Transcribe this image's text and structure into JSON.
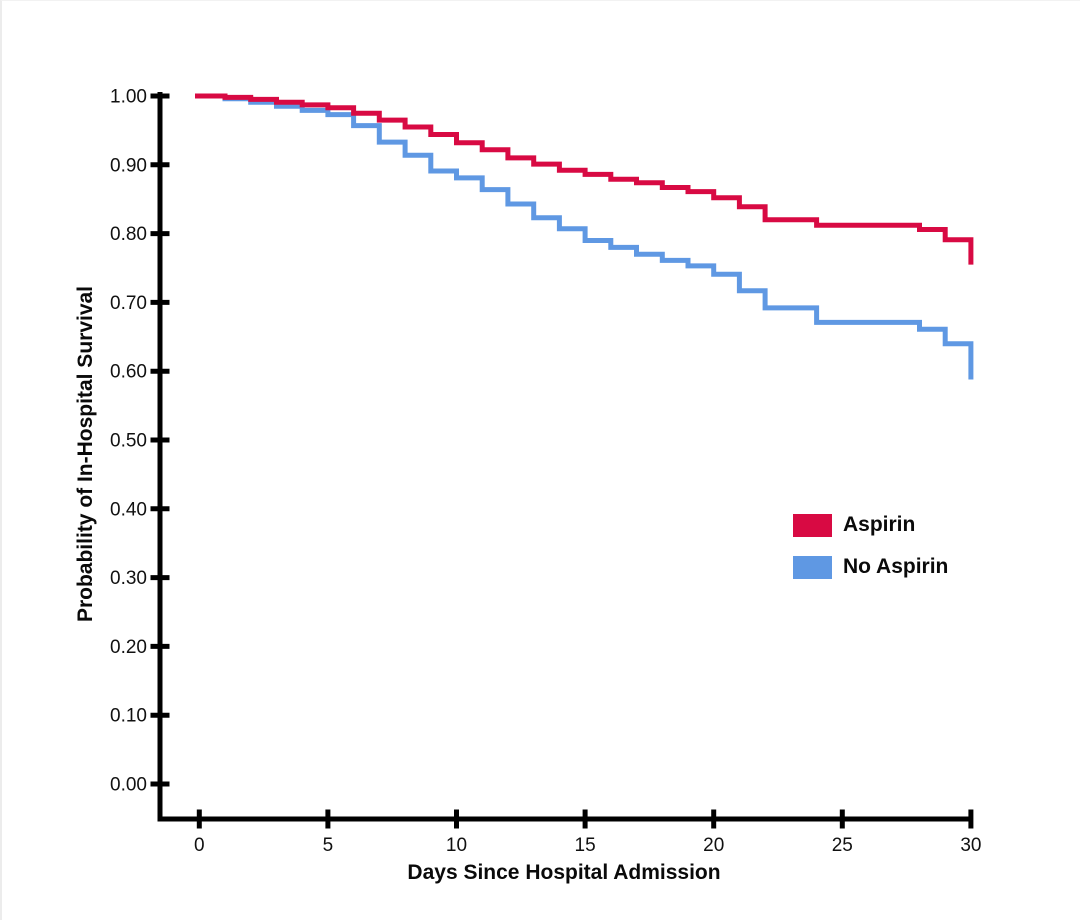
{
  "chart_data": {
    "type": "line",
    "chart_style": "kaplan-meier-step",
    "title": "",
    "xlabel": "Days Since Hospital Admission",
    "ylabel": "Probability of In-Hospital Survival",
    "xlim": [
      0,
      30
    ],
    "ylim": [
      0.0,
      1.0
    ],
    "grid": false,
    "legend_position": "middle-right",
    "xticks": [
      0,
      5,
      10,
      15,
      20,
      25,
      30
    ],
    "xtick_labels": [
      "0",
      "5",
      "10",
      "15",
      "20",
      "25",
      "30"
    ],
    "yticks": [
      1.0,
      0.9,
      0.8,
      0.7,
      0.6,
      0.5,
      0.4,
      0.3,
      0.2,
      0.1,
      0.0
    ],
    "ytick_labels": [
      "1.00",
      "0.90",
      "0.80",
      "0.70",
      "0.60",
      "0.50",
      "0.40",
      "0.30",
      "0.20",
      "0.10",
      "0.00"
    ],
    "axis_color": "#000000",
    "series": [
      {
        "name": "Aspirin",
        "color": "#D80A43",
        "points": [
          [
            0,
            1.0
          ],
          [
            1,
            0.998
          ],
          [
            2,
            0.995
          ],
          [
            3,
            0.991
          ],
          [
            4,
            0.987
          ],
          [
            5,
            0.983
          ],
          [
            6,
            0.975
          ],
          [
            7,
            0.965
          ],
          [
            8,
            0.955
          ],
          [
            9,
            0.944
          ],
          [
            10,
            0.932
          ],
          [
            11,
            0.922
          ],
          [
            12,
            0.91
          ],
          [
            13,
            0.901
          ],
          [
            14,
            0.892
          ],
          [
            15,
            0.886
          ],
          [
            16,
            0.879
          ],
          [
            17,
            0.874
          ],
          [
            18,
            0.867
          ],
          [
            19,
            0.861
          ],
          [
            20,
            0.852
          ],
          [
            21,
            0.839
          ],
          [
            22,
            0.82
          ],
          [
            24,
            0.812
          ],
          [
            28,
            0.806
          ],
          [
            29,
            0.791
          ],
          [
            30,
            0.755
          ]
        ]
      },
      {
        "name": "No Aspirin",
        "color": "#5F98E3",
        "points": [
          [
            0,
            1.0
          ],
          [
            1,
            0.996
          ],
          [
            2,
            0.991
          ],
          [
            3,
            0.985
          ],
          [
            4,
            0.979
          ],
          [
            5,
            0.973
          ],
          [
            6,
            0.957
          ],
          [
            7,
            0.933
          ],
          [
            8,
            0.914
          ],
          [
            9,
            0.891
          ],
          [
            10,
            0.881
          ],
          [
            11,
            0.864
          ],
          [
            12,
            0.843
          ],
          [
            13,
            0.823
          ],
          [
            14,
            0.807
          ],
          [
            15,
            0.79
          ],
          [
            16,
            0.78
          ],
          [
            17,
            0.77
          ],
          [
            18,
            0.761
          ],
          [
            19,
            0.753
          ],
          [
            20,
            0.741
          ],
          [
            21,
            0.717
          ],
          [
            22,
            0.692
          ],
          [
            24,
            0.671
          ],
          [
            28,
            0.661
          ],
          [
            29,
            0.64
          ],
          [
            30,
            0.588
          ]
        ]
      }
    ]
  }
}
